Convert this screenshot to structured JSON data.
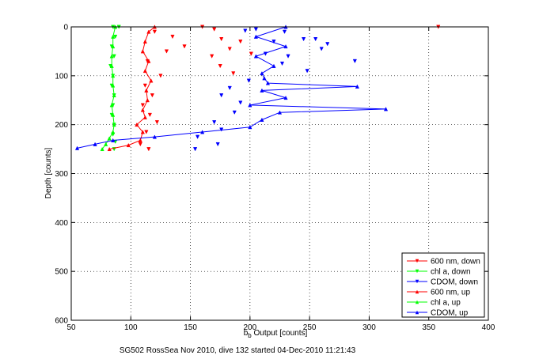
{
  "chart_data": {
    "type": "line",
    "xlabel": "b",
    "xlabel_sub": "b",
    "xlabel_rest": " Output [counts]",
    "ylabel": "Depth [counts]",
    "caption": "SG502 RossSea Nov 2010, dive 132 started 04-Dec-2010 11:21:43",
    "xlim": [
      50,
      400
    ],
    "ylim": [
      600,
      0
    ],
    "x_ticks": [
      50,
      100,
      150,
      200,
      250,
      300,
      350,
      400
    ],
    "y_ticks": [
      0,
      100,
      200,
      300,
      400,
      500,
      600
    ],
    "grid": true,
    "legend_placement": "bottom-right",
    "series": [
      {
        "name": "600 nm, down",
        "color": "#ff0000",
        "marker": "triangle-down",
        "points": [
          [
            170,
            5
          ],
          [
            176,
            25
          ],
          [
            183,
            45
          ],
          [
            168,
            60
          ],
          [
            175,
            80
          ],
          [
            192,
            30
          ],
          [
            201,
            55
          ],
          [
            186,
            95
          ],
          [
            120,
            10
          ],
          [
            130,
            50
          ],
          [
            114,
            70
          ],
          [
            125,
            100
          ],
          [
            112,
            120
          ],
          [
            118,
            140
          ],
          [
            110,
            160
          ],
          [
            116,
            180
          ],
          [
            122,
            195
          ],
          [
            113,
            215
          ],
          [
            108,
            240
          ],
          [
            115,
            250
          ],
          [
            160,
            0
          ],
          [
            358,
            0
          ],
          [
            145,
            40
          ],
          [
            135,
            20
          ]
        ]
      },
      {
        "name": "chl a, down",
        "color": "#00ff00",
        "marker": "triangle-down",
        "points": [
          [
            85,
            0
          ],
          [
            87,
            20
          ],
          [
            84,
            40
          ],
          [
            86,
            60
          ],
          [
            83,
            80
          ],
          [
            85,
            100
          ],
          [
            84,
            120
          ],
          [
            86,
            140
          ],
          [
            85,
            160
          ],
          [
            84,
            180
          ],
          [
            86,
            200
          ],
          [
            85,
            220
          ],
          [
            87,
            235
          ],
          [
            86,
            250
          ],
          [
            90,
            0
          ]
        ]
      },
      {
        "name": "CDOM, down",
        "color": "#0000ff",
        "marker": "triangle-down",
        "points": [
          [
            205,
            5
          ],
          [
            220,
            30
          ],
          [
            255,
            25
          ],
          [
            260,
            45
          ],
          [
            232,
            60
          ],
          [
            227,
            75
          ],
          [
            248,
            90
          ],
          [
            213,
            55
          ],
          [
            199,
            110
          ],
          [
            183,
            125
          ],
          [
            176,
            140
          ],
          [
            192,
            155
          ],
          [
            187,
            175
          ],
          [
            170,
            195
          ],
          [
            176,
            210
          ],
          [
            156,
            225
          ],
          [
            173,
            240
          ],
          [
            154,
            250
          ],
          [
            245,
            25
          ],
          [
            288,
            70
          ],
          [
            265,
            35
          ],
          [
            196,
            8
          ],
          [
            229,
            10
          ]
        ]
      },
      {
        "name": "600 nm, up",
        "color": "#ff0000",
        "marker": "triangle-up",
        "points": [
          [
            82,
            250
          ],
          [
            98,
            242
          ],
          [
            108,
            232
          ],
          [
            110,
            215
          ],
          [
            105,
            200
          ],
          [
            112,
            185
          ],
          [
            110,
            170
          ],
          [
            114,
            150
          ],
          [
            113,
            130
          ],
          [
            117,
            110
          ],
          [
            112,
            90
          ],
          [
            115,
            70
          ],
          [
            110,
            50
          ],
          [
            112,
            30
          ],
          [
            115,
            10
          ],
          [
            120,
            0
          ]
        ]
      },
      {
        "name": "chl a, up",
        "color": "#00ff00",
        "marker": "triangle-up",
        "points": [
          [
            76,
            250
          ],
          [
            79,
            240
          ],
          [
            82,
            228
          ],
          [
            85,
            215
          ],
          [
            86,
            200
          ],
          [
            85,
            180
          ],
          [
            84,
            160
          ],
          [
            86,
            140
          ],
          [
            85,
            120
          ],
          [
            85,
            100
          ],
          [
            84,
            80
          ],
          [
            84,
            60
          ],
          [
            85,
            40
          ],
          [
            85,
            20
          ],
          [
            87,
            0
          ]
        ]
      },
      {
        "name": "CDOM, up",
        "color": "#0000ff",
        "marker": "triangle-up",
        "points": [
          [
            55,
            248
          ],
          [
            70,
            240
          ],
          [
            85,
            232
          ],
          [
            120,
            225
          ],
          [
            160,
            215
          ],
          [
            200,
            205
          ],
          [
            210,
            190
          ],
          [
            225,
            175
          ],
          [
            314,
            168
          ],
          [
            200,
            160
          ],
          [
            230,
            145
          ],
          [
            210,
            130
          ],
          [
            290,
            122
          ],
          [
            215,
            115
          ],
          [
            212,
            105
          ],
          [
            210,
            95
          ],
          [
            220,
            80
          ],
          [
            205,
            60
          ],
          [
            230,
            40
          ],
          [
            205,
            20
          ],
          [
            230,
            0
          ]
        ]
      }
    ]
  }
}
